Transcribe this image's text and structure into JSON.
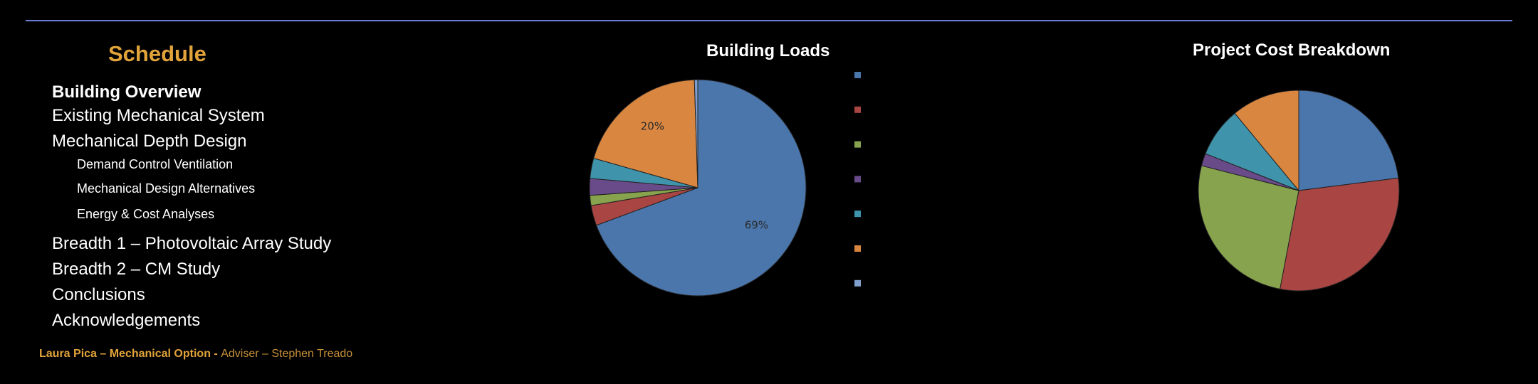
{
  "schedule": {
    "title": "Schedule",
    "items": [
      {
        "label": "Building Overview",
        "level": 1,
        "active": true
      },
      {
        "label": "Existing Mechanical System",
        "level": 1,
        "active": false
      },
      {
        "label": "Mechanical Depth Design",
        "level": 1,
        "active": false
      },
      {
        "label": "Demand Control Ventilation",
        "level": 2,
        "active": false
      },
      {
        "label": "Mechanical Design Alternatives",
        "level": 2,
        "active": false
      },
      {
        "label": "Energy & Cost Analyses",
        "level": 2,
        "active": false
      },
      {
        "label": "Breadth 1 – Photovoltaic Array Study",
        "level": 1,
        "active": false
      },
      {
        "label": "Breadth 2 – CM Study",
        "level": 1,
        "active": false
      },
      {
        "label": "Conclusions",
        "level": 1,
        "active": false
      },
      {
        "label": "Acknowledgements",
        "level": 1,
        "active": false
      }
    ]
  },
  "footer": {
    "name": "Laura Pica – Mechanical Option",
    "separator": " - ",
    "adviser": "Adviser – Stephen Treado"
  },
  "colors": {
    "accent": "#e2a33a",
    "rule": "#6d7fd6",
    "background": "#000000"
  },
  "chart_data": [
    {
      "type": "pie",
      "title": "Building Loads",
      "legend_position": "right",
      "series": [
        {
          "value": 69,
          "color": "#4a76ac",
          "label": "69%"
        },
        {
          "value": 3,
          "color": "#a94542"
        },
        {
          "value": 1.5,
          "color": "#88a34d"
        },
        {
          "value": 2.5,
          "color": "#6a4b8a"
        },
        {
          "value": 3,
          "color": "#3f93ab"
        },
        {
          "value": 20,
          "color": "#d98640",
          "label": "20%"
        },
        {
          "value": 0.5,
          "color": "#7f9fce"
        }
      ],
      "label_color": "#2b2b2b"
    },
    {
      "type": "pie",
      "title": "Project Cost Breakdown",
      "series": [
        {
          "value": 23,
          "color": "#4a76ac"
        },
        {
          "value": 30,
          "color": "#a94542"
        },
        {
          "value": 26,
          "color": "#88a34d"
        },
        {
          "value": 2,
          "color": "#6a4b8a"
        },
        {
          "value": 8,
          "color": "#3f93ab"
        },
        {
          "value": 11,
          "color": "#d98640"
        }
      ]
    }
  ]
}
